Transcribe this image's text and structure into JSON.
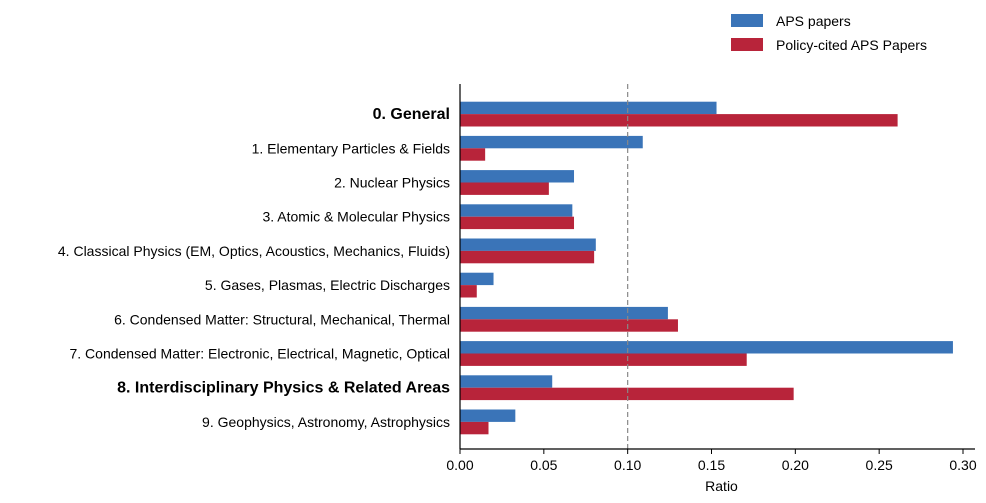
{
  "chart_data": {
    "type": "bar",
    "orientation": "horizontal",
    "title": "",
    "xlabel": "Ratio",
    "ylabel": "",
    "xlim": [
      0,
      0.3
    ],
    "xticks": [
      "0.00",
      "0.05",
      "0.10",
      "0.15",
      "0.20",
      "0.25",
      "0.30"
    ],
    "xtick_values": [
      0,
      0.05,
      0.1,
      0.15,
      0.2,
      0.25,
      0.3
    ],
    "reference_line": {
      "x": 0.1,
      "style": "dashed",
      "color": "#888888"
    },
    "legend_position": "top-right",
    "categories": [
      "0. General",
      "1. Elementary Particles & Fields",
      "2. Nuclear Physics",
      "3. Atomic & Molecular Physics",
      "4. Classical Physics (EM, Optics, Acoustics, Mechanics, Fluids)",
      "5. Gases, Plasmas, Electric Discharges",
      "6. Condensed Matter: Structural, Mechanical, Thermal",
      "7. Condensed Matter: Electronic, Electrical, Magnetic, Optical",
      "8. Interdisciplinary Physics & Related Areas",
      "9. Geophysics, Astronomy, Astrophysics"
    ],
    "bold_categories": [
      0,
      8
    ],
    "series": [
      {
        "name": "APS papers",
        "color": "#3a74b8",
        "values": [
          0.153,
          0.109,
          0.068,
          0.067,
          0.081,
          0.02,
          0.124,
          0.294,
          0.055,
          0.033
        ]
      },
      {
        "name": "Policy-cited APS Papers",
        "color": "#b8243a",
        "values": [
          0.261,
          0.015,
          0.053,
          0.068,
          0.08,
          0.01,
          0.13,
          0.171,
          0.199,
          0.017
        ]
      }
    ]
  }
}
